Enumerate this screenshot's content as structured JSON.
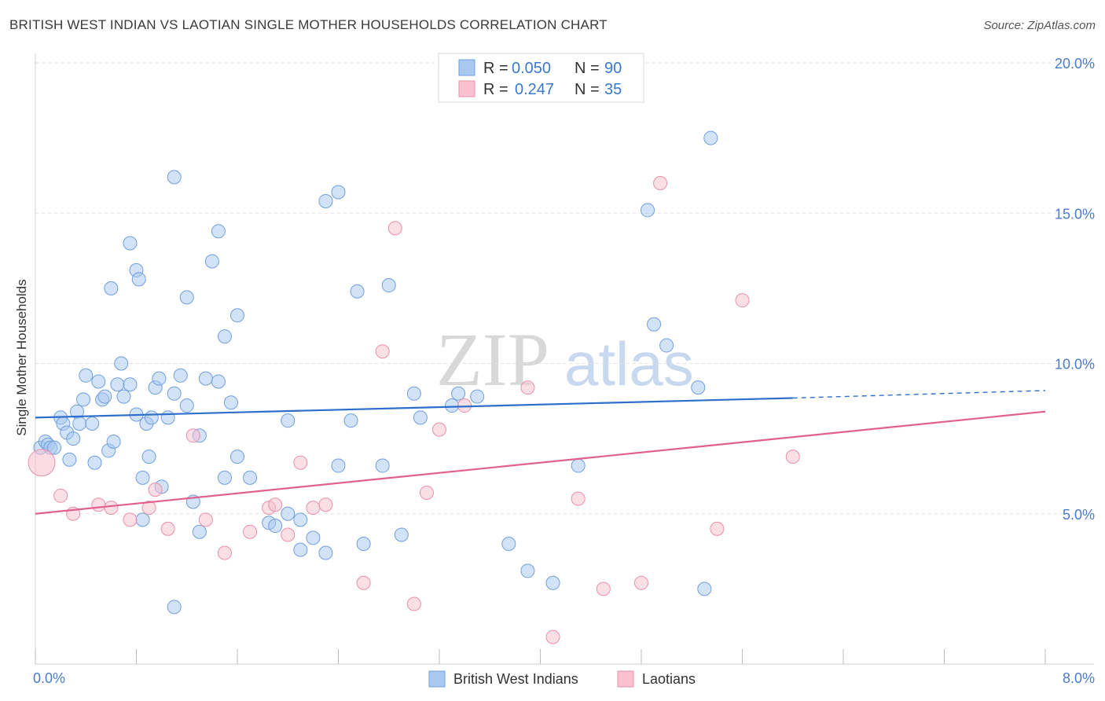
{
  "title": "BRITISH WEST INDIAN VS LAOTIAN SINGLE MOTHER HOUSEHOLDS CORRELATION CHART",
  "source": "Source: ZipAtlas.com",
  "watermark": {
    "zip": "ZIP",
    "atlas": "atlas"
  },
  "legend": {
    "r_label": "R =",
    "n_label": "N =",
    "entries": [
      {
        "r": "0.050",
        "n": "90",
        "color": "#a8c8f0",
        "stroke": "#6f9fe0"
      },
      {
        "r": "0.247",
        "n": "35",
        "color": "#f8c0d0",
        "stroke": "#e890aa"
      }
    ]
  },
  "chart_data": {
    "type": "scatter",
    "title": "BRITISH WEST INDIAN VS LAOTIAN SINGLE MOTHER HOUSEHOLDS CORRELATION CHART",
    "xlabel": "",
    "ylabel": "Single Mother Households",
    "xlim": [
      0,
      8.0
    ],
    "ylim": [
      0,
      20.0
    ],
    "x_tick_labels": [
      "0.0%",
      "8.0%"
    ],
    "y_ticks": [
      5,
      10,
      15,
      20
    ],
    "y_tick_labels": [
      "5.0%",
      "10.0%",
      "15.0%",
      "20.0%"
    ],
    "grid": true,
    "legend_position": "top-center",
    "series": [
      {
        "name": "British West Indians",
        "color": "#a8c8f0",
        "stroke": "#6f9fe0",
        "line_color": "#2f6fcc",
        "trend": {
          "x0": 0.0,
          "y0": 8.2,
          "x1": 6.0,
          "y1": 8.85,
          "x_dash_end": 8.0,
          "y_dash_end": 9.1
        },
        "points": [
          [
            0.04,
            7.2
          ],
          [
            0.08,
            7.4
          ],
          [
            0.1,
            7.3
          ],
          [
            0.12,
            7.2
          ],
          [
            0.15,
            7.2
          ],
          [
            0.2,
            8.2
          ],
          [
            0.22,
            8.0
          ],
          [
            0.25,
            7.7
          ],
          [
            0.27,
            6.8
          ],
          [
            0.3,
            7.5
          ],
          [
            0.33,
            8.4
          ],
          [
            0.35,
            8.0
          ],
          [
            0.38,
            8.8
          ],
          [
            0.4,
            9.6
          ],
          [
            0.45,
            8.0
          ],
          [
            0.47,
            6.7
          ],
          [
            0.5,
            9.4
          ],
          [
            0.53,
            8.8
          ],
          [
            0.55,
            8.9
          ],
          [
            0.58,
            7.1
          ],
          [
            0.62,
            7.4
          ],
          [
            0.65,
            9.3
          ],
          [
            0.68,
            10.0
          ],
          [
            0.7,
            8.9
          ],
          [
            0.75,
            9.3
          ],
          [
            0.8,
            8.3
          ],
          [
            0.85,
            6.2
          ],
          [
            0.88,
            8.0
          ],
          [
            0.9,
            6.9
          ],
          [
            0.92,
            8.2
          ],
          [
            0.95,
            9.2
          ],
          [
            0.98,
            9.5
          ],
          [
            1.0,
            5.9
          ],
          [
            1.05,
            8.2
          ],
          [
            1.1,
            9.0
          ],
          [
            1.15,
            9.6
          ],
          [
            1.2,
            8.6
          ],
          [
            1.25,
            5.4
          ],
          [
            1.3,
            7.6
          ],
          [
            1.35,
            9.5
          ],
          [
            1.45,
            9.4
          ],
          [
            1.55,
            8.7
          ],
          [
            1.6,
            6.9
          ],
          [
            1.7,
            6.2
          ],
          [
            1.85,
            4.7
          ],
          [
            2.0,
            8.1
          ],
          [
            2.1,
            3.8
          ],
          [
            2.2,
            4.2
          ],
          [
            2.3,
            3.7
          ],
          [
            2.4,
            6.6
          ],
          [
            2.5,
            8.1
          ],
          [
            2.6,
            4.0
          ],
          [
            2.8,
            12.6
          ],
          [
            3.0,
            9.0
          ],
          [
            3.35,
            9.0
          ],
          [
            3.5,
            8.9
          ],
          [
            3.75,
            4.0
          ],
          [
            3.9,
            3.1
          ],
          [
            4.1,
            2.7
          ],
          [
            4.3,
            6.6
          ],
          [
            4.9,
            11.3
          ],
          [
            5.0,
            10.6
          ],
          [
            5.25,
            9.2
          ],
          [
            5.3,
            2.5
          ],
          [
            0.6,
            12.5
          ],
          [
            0.75,
            14.0
          ],
          [
            0.8,
            13.1
          ],
          [
            0.82,
            12.8
          ],
          [
            1.1,
            16.2
          ],
          [
            1.2,
            12.2
          ],
          [
            1.4,
            13.4
          ],
          [
            1.45,
            14.4
          ],
          [
            1.5,
            10.9
          ],
          [
            1.6,
            11.6
          ],
          [
            2.3,
            15.4
          ],
          [
            2.4,
            15.7
          ],
          [
            2.55,
            12.4
          ],
          [
            4.85,
            15.1
          ],
          [
            5.35,
            17.5
          ],
          [
            0.85,
            4.8
          ],
          [
            1.1,
            1.9
          ],
          [
            1.3,
            4.4
          ],
          [
            1.5,
            6.2
          ],
          [
            1.9,
            4.6
          ],
          [
            2.0,
            5.0
          ],
          [
            2.1,
            4.8
          ],
          [
            2.75,
            6.6
          ],
          [
            2.9,
            4.3
          ],
          [
            3.05,
            8.2
          ],
          [
            3.3,
            8.6
          ]
        ]
      },
      {
        "name": "Laotians",
        "color": "#f8c0d0",
        "stroke": "#e890aa",
        "line_color": "#e06090",
        "trend": {
          "x0": 0.0,
          "y0": 5.0,
          "x1": 8.0,
          "y1": 8.4
        },
        "points": [
          [
            0.05,
            6.7
          ],
          [
            0.2,
            5.6
          ],
          [
            0.3,
            5.0
          ],
          [
            0.5,
            5.3
          ],
          [
            0.6,
            5.2
          ],
          [
            0.75,
            4.8
          ],
          [
            0.9,
            5.2
          ],
          [
            1.05,
            4.5
          ],
          [
            1.25,
            7.6
          ],
          [
            1.35,
            4.8
          ],
          [
            1.5,
            3.7
          ],
          [
            1.7,
            4.4
          ],
          [
            1.85,
            5.2
          ],
          [
            2.0,
            4.3
          ],
          [
            2.1,
            6.7
          ],
          [
            2.2,
            5.2
          ],
          [
            2.3,
            5.3
          ],
          [
            2.6,
            2.7
          ],
          [
            2.75,
            10.4
          ],
          [
            2.85,
            14.5
          ],
          [
            3.0,
            2.0
          ],
          [
            3.1,
            5.7
          ],
          [
            3.2,
            7.8
          ],
          [
            3.4,
            8.6
          ],
          [
            3.9,
            9.2
          ],
          [
            4.1,
            0.9
          ],
          [
            4.3,
            5.5
          ],
          [
            4.5,
            2.5
          ],
          [
            4.8,
            2.7
          ],
          [
            4.95,
            16.0
          ],
          [
            5.4,
            4.5
          ],
          [
            5.6,
            12.1
          ],
          [
            6.0,
            6.9
          ],
          [
            0.95,
            5.8
          ],
          [
            1.9,
            5.3
          ]
        ]
      }
    ]
  }
}
